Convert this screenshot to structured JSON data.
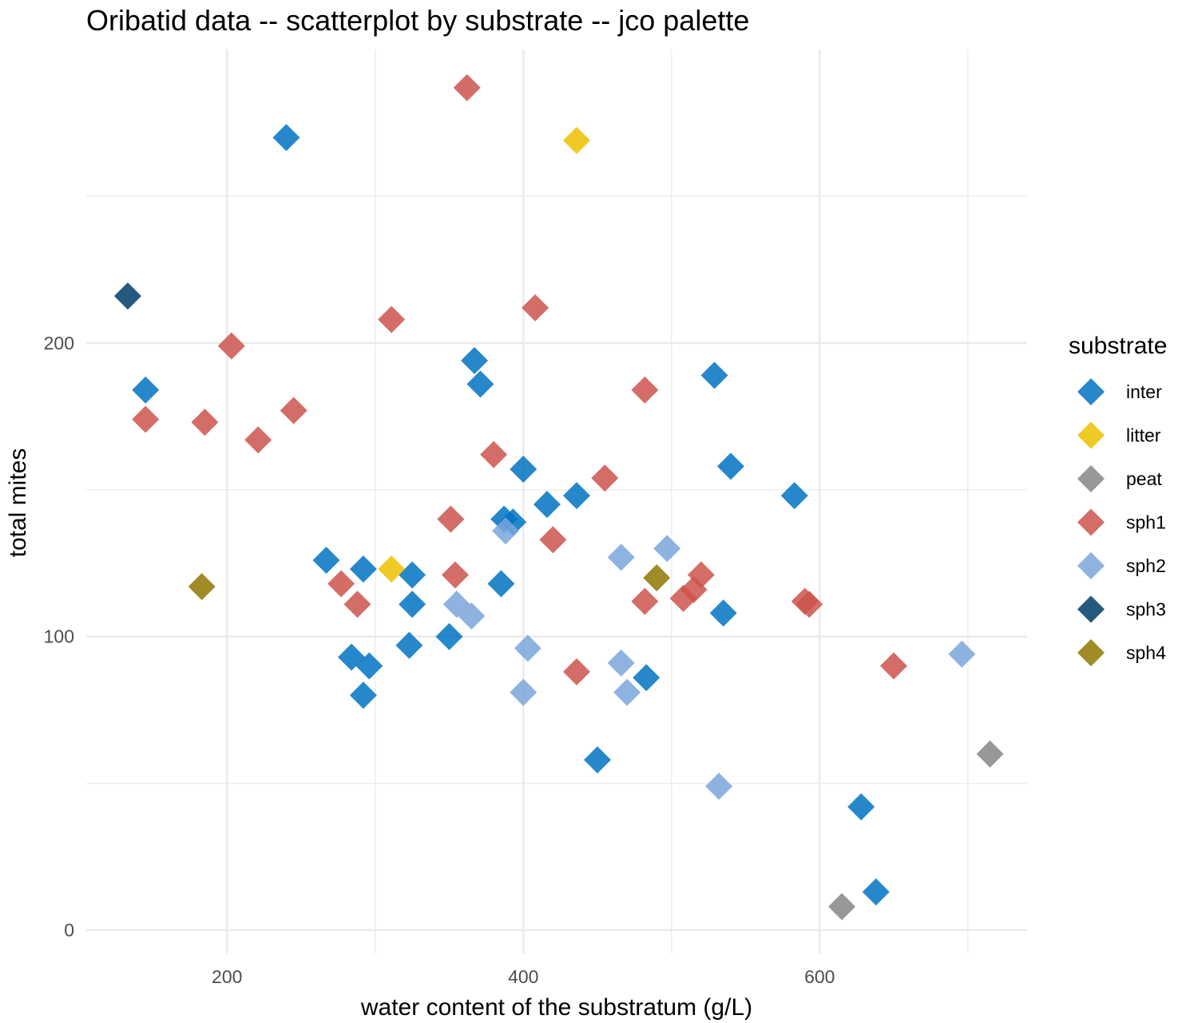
{
  "chart_data": {
    "type": "scatter",
    "title": "Oribatid data -- scatterplot by substrate -- jco palette",
    "xlabel": "water content of the substratum (g/L)",
    "ylabel": "total mites",
    "xlim": [
      105,
      740
    ],
    "ylim": [
      -8,
      300
    ],
    "x_ticks": [
      200,
      400,
      600
    ],
    "y_ticks": [
      0,
      100,
      200
    ],
    "x_tick_labels": [
      "200",
      "400",
      "600"
    ],
    "y_tick_labels": [
      "0",
      "100",
      "200"
    ],
    "x_minor": [
      300,
      500,
      700
    ],
    "y_minor": [
      50,
      150,
      250
    ],
    "grid": true,
    "marker": "diamond",
    "legend": {
      "title": "substrate",
      "position": "right"
    },
    "series": [
      {
        "name": "inter",
        "color": "#0073C2",
        "points": [
          [
            240,
            270
          ],
          [
            145,
            184
          ],
          [
            367,
            194
          ],
          [
            371,
            186
          ],
          [
            400,
            157
          ],
          [
            416,
            145
          ],
          [
            436,
            148
          ],
          [
            387,
            140
          ],
          [
            393,
            139
          ],
          [
            385,
            118
          ],
          [
            267,
            126
          ],
          [
            292,
            123
          ],
          [
            325,
            121
          ],
          [
            325,
            111
          ],
          [
            350,
            100
          ],
          [
            323,
            97
          ],
          [
            284,
            93
          ],
          [
            296,
            90
          ],
          [
            292,
            80
          ],
          [
            483,
            86
          ],
          [
            450,
            58
          ],
          [
            529,
            189
          ],
          [
            540,
            158
          ],
          [
            583,
            148
          ],
          [
            535,
            108
          ],
          [
            628,
            42
          ],
          [
            638,
            13
          ]
        ]
      },
      {
        "name": "litter",
        "color": "#EFC000",
        "points": [
          [
            436,
            269
          ],
          [
            311,
            123
          ]
        ]
      },
      {
        "name": "peat",
        "color": "#868686",
        "points": [
          [
            715,
            60
          ],
          [
            615,
            8
          ]
        ]
      },
      {
        "name": "sph1",
        "color": "#CD534C",
        "points": [
          [
            362,
            287
          ],
          [
            311,
            208
          ],
          [
            408,
            212
          ],
          [
            203,
            199
          ],
          [
            145,
            174
          ],
          [
            185,
            173
          ],
          [
            221,
            167
          ],
          [
            245,
            177
          ],
          [
            380,
            162
          ],
          [
            455,
            154
          ],
          [
            482,
            184
          ],
          [
            351,
            140
          ],
          [
            420,
            133
          ],
          [
            354,
            121
          ],
          [
            277,
            118
          ],
          [
            288,
            111
          ],
          [
            482,
            112
          ],
          [
            508,
            113
          ],
          [
            515,
            116
          ],
          [
            520,
            121
          ],
          [
            590,
            112
          ],
          [
            593,
            111
          ],
          [
            436,
            88
          ],
          [
            650,
            90
          ]
        ]
      },
      {
        "name": "sph2",
        "color": "#7AA6DC",
        "points": [
          [
            388,
            136
          ],
          [
            355,
            111
          ],
          [
            365,
            107
          ],
          [
            466,
            127
          ],
          [
            497,
            130
          ],
          [
            403,
            96
          ],
          [
            400,
            81
          ],
          [
            466,
            91
          ],
          [
            470,
            81
          ],
          [
            532,
            49
          ],
          [
            696,
            94
          ]
        ]
      },
      {
        "name": "sph3",
        "color": "#003C67",
        "points": [
          [
            133,
            216
          ]
        ]
      },
      {
        "name": "sph4",
        "color": "#8F7700",
        "points": [
          [
            183,
            117
          ],
          [
            490,
            120
          ]
        ]
      }
    ]
  }
}
